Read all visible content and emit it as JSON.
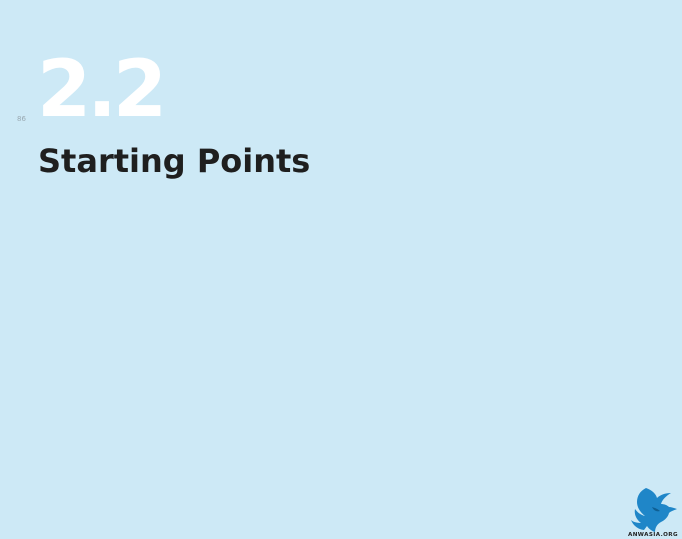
{
  "page": {
    "number": "86",
    "section_number": "2.2",
    "title": "Starting Points"
  },
  "brand": {
    "logo_icon": "bird-logo-icon",
    "logo_text": "ANWASIA.ORG"
  },
  "colors": {
    "background": "#cde9f6",
    "section_number": "#ffffff",
    "title": "#1f1f1f",
    "logo_blue": "#1f86c8",
    "page_number": "#9aa9b2"
  }
}
